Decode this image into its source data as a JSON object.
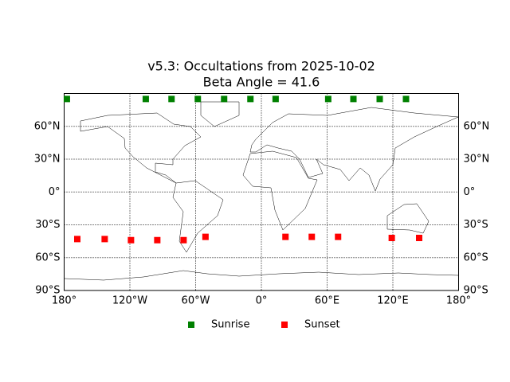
{
  "chart_data": {
    "type": "scatter",
    "title": "v5.3: Occultations from 2025-10-02",
    "subtitle": "Beta Angle = 41.6",
    "xlim": [
      -180,
      180
    ],
    "ylim": [
      -90,
      90
    ],
    "xticks": [
      {
        "value": -180,
        "label": "180°"
      },
      {
        "value": -120,
        "label": "120°W"
      },
      {
        "value": -60,
        "label": "60°W"
      },
      {
        "value": 0,
        "label": "0°"
      },
      {
        "value": 60,
        "label": "60°E"
      },
      {
        "value": 120,
        "label": "120°E"
      },
      {
        "value": 180,
        "label": "180°"
      }
    ],
    "yticks": [
      {
        "value": -90,
        "label": "90°S"
      },
      {
        "value": -60,
        "label": "60°S"
      },
      {
        "value": -30,
        "label": "30°S"
      },
      {
        "value": 0,
        "label": "0°"
      },
      {
        "value": 30,
        "label": "30°N"
      },
      {
        "value": 60,
        "label": "60°N"
      }
    ],
    "grid": true,
    "legend": "bottom",
    "series": [
      {
        "name": "Sunrise",
        "color": "#008000",
        "x": [
          -177.5,
          -105.5,
          -82,
          -58,
          -34,
          -10,
          13,
          61,
          84,
          108,
          132
        ],
        "values": [
          85,
          85,
          85,
          85,
          85,
          85,
          85,
          85,
          85,
          85,
          85
        ]
      },
      {
        "name": "Sunset",
        "color": "#ff0000",
        "x": [
          -168,
          -143,
          -119,
          -95,
          -71,
          -51,
          22,
          46,
          70,
          119,
          144
        ],
        "values": [
          -43,
          -43,
          -44,
          -44,
          -44,
          -41,
          -41,
          -41,
          -41,
          -42,
          -42
        ]
      }
    ]
  }
}
